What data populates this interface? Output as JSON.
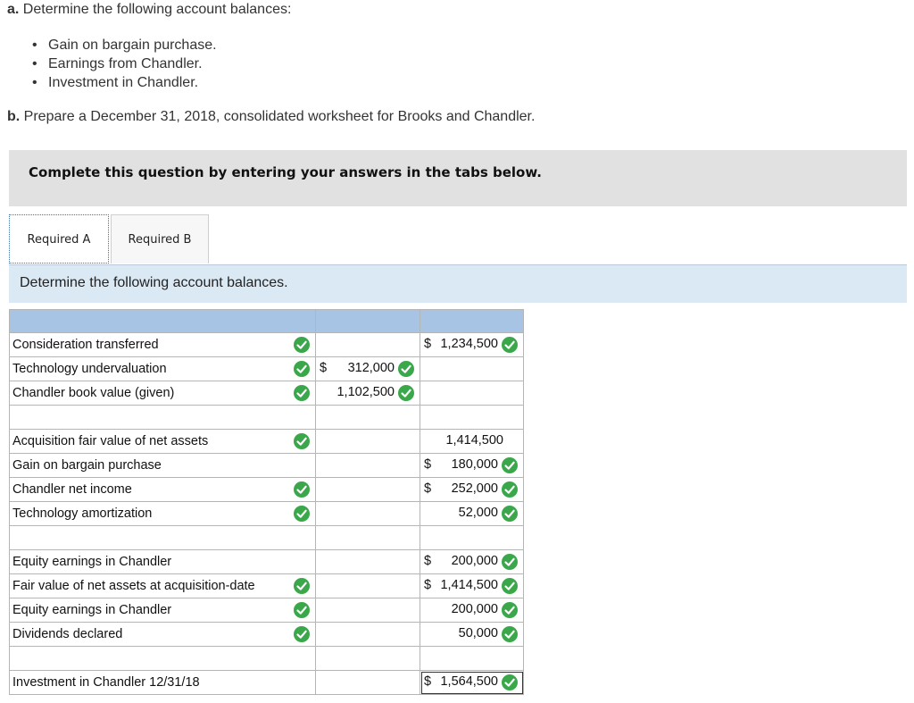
{
  "intro": {
    "a_prefix": "a.",
    "a_text": " Determine the following account balances:",
    "bullets": [
      "Gain on bargain purchase.",
      "Earnings from Chandler.",
      "Investment in Chandler."
    ],
    "b_prefix": "b.",
    "b_text": " Prepare a December 31, 2018, consolidated worksheet for Brooks and Chandler."
  },
  "banner": "Complete this question by entering your answers in the tabs below.",
  "tabs": [
    "Required A",
    "Required B"
  ],
  "instruction": "Determine the following account balances.",
  "rows": [
    {
      "label": "Consideration transferred",
      "label_check": true,
      "c2": "",
      "c3_cur": "$",
      "c3": "1,234,500",
      "c3_check": true
    },
    {
      "label": "Technology undervaluation",
      "label_check": true,
      "c2_cur": "$",
      "c2": "312,000",
      "c2_check": true,
      "c3": ""
    },
    {
      "label": "Chandler book value (given)",
      "label_check": true,
      "c2": "1,102,500",
      "c2_check": true,
      "c3": ""
    },
    {
      "label": "",
      "spacer": true
    },
    {
      "label": "Acquisition fair value of net assets",
      "label_check": true,
      "c2": "",
      "c3": "1,414,500",
      "c3_check": false
    },
    {
      "label": "Gain on bargain purchase",
      "label_check": false,
      "c2": "",
      "c3_cur": "$",
      "c3": "180,000",
      "c3_check": true
    },
    {
      "label": "Chandler net income",
      "label_check": true,
      "c2": "",
      "c3_cur": "$",
      "c3": "252,000",
      "c3_check": true
    },
    {
      "label": "Technology amortization",
      "label_check": true,
      "c2": "",
      "c3": "52,000",
      "c3_check": true
    },
    {
      "label": "",
      "spacer": true
    },
    {
      "label": "Equity earnings in Chandler",
      "label_check": false,
      "c2": "",
      "c3_cur": "$",
      "c3": "200,000",
      "c3_check": true
    },
    {
      "label": "Fair value of net assets at acquisition-date",
      "label_check": true,
      "c2": "",
      "c3_cur": "$",
      "c3": "1,414,500",
      "c3_check": true
    },
    {
      "label": "Equity earnings in Chandler",
      "label_check": true,
      "c2": "",
      "c3": "200,000",
      "c3_check": true
    },
    {
      "label": "Dividends declared",
      "label_check": true,
      "c2": "",
      "c3": "50,000",
      "c3_check": true
    },
    {
      "label": "",
      "spacer": true
    },
    {
      "label": "Investment in Chandler 12/31/18",
      "label_check": false,
      "c2": "",
      "c3_cur": "$",
      "c3": "1,564,500",
      "c3_check": true
    }
  ],
  "colors": {
    "header": "#a8c4e4",
    "check": "#3aa84a",
    "banner": "#e1e1e1",
    "instruction_bg": "#dbe9f5"
  }
}
